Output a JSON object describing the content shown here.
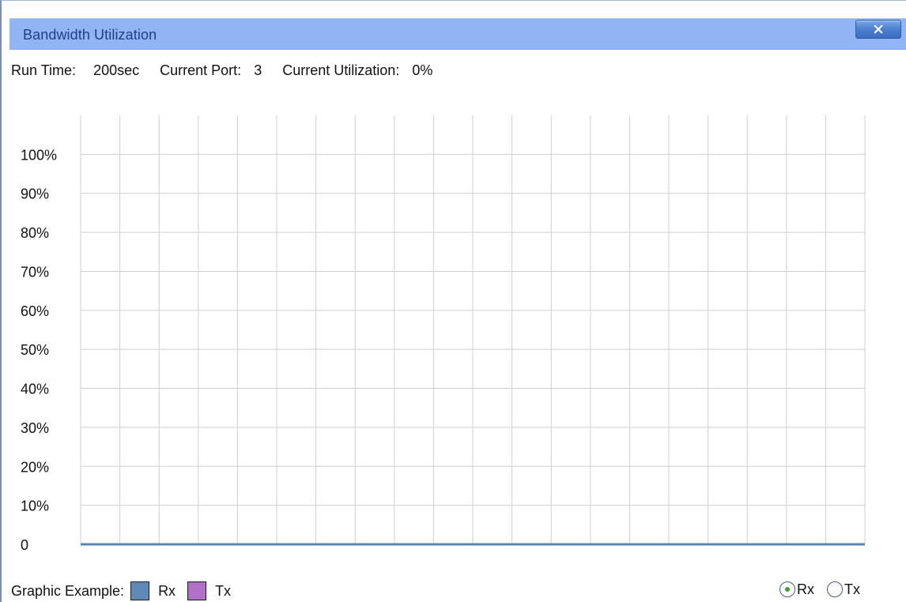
{
  "window": {
    "title": "Bandwidth Utilization",
    "close_label": "X"
  },
  "status": {
    "run_time_label": "Run Time:",
    "run_time_value": "200sec",
    "current_port_label": "Current Port:",
    "current_port_value": "3",
    "current_utilization_label": "Current Utilization:",
    "current_utilization_value": "0%"
  },
  "chart_data": {
    "type": "line",
    "title": "",
    "xlabel": "",
    "ylabel": "",
    "ylim": [
      0,
      100
    ],
    "y_ticks": [
      "0",
      "10%",
      "20%",
      "30%",
      "40%",
      "50%",
      "60%",
      "70%",
      "80%",
      "90%",
      "100%"
    ],
    "series": [
      {
        "name": "Rx",
        "values": [
          0,
          0,
          0,
          0,
          0,
          0,
          0,
          0,
          0,
          0,
          0,
          0,
          0,
          0,
          0,
          0,
          0,
          0,
          0,
          0,
          0
        ]
      }
    ],
    "grid": true,
    "line_color": "#5b85b8"
  },
  "legend": {
    "label": "Graphic Example:",
    "items": [
      {
        "label": "Rx",
        "color": "#5f8ab8"
      },
      {
        "label": "Tx",
        "color": "#b271c8"
      }
    ]
  },
  "view_mode": {
    "options": [
      {
        "label": "Rx",
        "selected": true
      },
      {
        "label": "Tx",
        "selected": false
      }
    ]
  },
  "colors": {
    "titlebar": "#91b4f5",
    "grid": "#cfcfcf",
    "axis": "#5b85b8"
  }
}
